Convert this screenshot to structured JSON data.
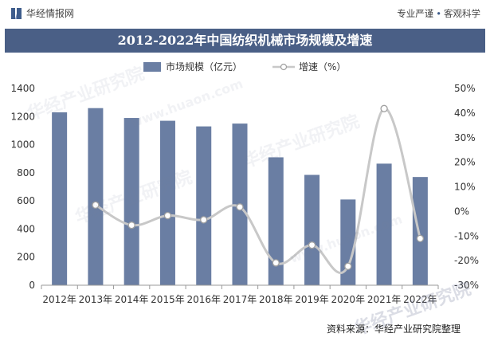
{
  "header": {
    "brand": "华经情报网",
    "slogan_left": "专业严谨",
    "slogan_right": "客观科学",
    "title": "2012-2022年中国纺织机械市场规模及增速"
  },
  "legend": {
    "bar_label": "市场规模（亿元）",
    "line_label": "增速（%）"
  },
  "watermarks": [
    "华经产业研究院",
    "www.huaon.com"
  ],
  "footer": {
    "source": "资料来源：华经产业研究院整理"
  },
  "chart_data": {
    "type": "bar+line",
    "title": "2012-2022年中国纺织机械市场规模及增速",
    "categories": [
      "2012年",
      "2013年",
      "2014年",
      "2015年",
      "2016年",
      "2017年",
      "2018年",
      "2019年",
      "2020年",
      "2021年",
      "2022年"
    ],
    "series": [
      {
        "name": "市场规模（亿元）",
        "type": "bar",
        "axis": "left",
        "values": [
          1230,
          1260,
          1190,
          1170,
          1130,
          1150,
          910,
          785,
          610,
          865,
          770
        ]
      },
      {
        "name": "增速（%）",
        "type": "line",
        "axis": "right",
        "values": [
          null,
          2.6,
          -5.6,
          -1.7,
          -3.4,
          1.8,
          -20.9,
          -13.7,
          -22.3,
          41.8,
          -11.0
        ]
      }
    ],
    "ylim_left": [
      0,
      1400
    ],
    "yticks_left": [
      "0",
      "200",
      "400",
      "600",
      "800",
      "1000",
      "1200",
      "1400"
    ],
    "yticks_left_values": [
      0,
      200,
      400,
      600,
      800,
      1000,
      1200,
      1400
    ],
    "ylim_right": [
      -30,
      50
    ],
    "yticks_right": [
      "-30%",
      "-20%",
      "-10%",
      "0%",
      "10%",
      "20%",
      "30%",
      "40%",
      "50%"
    ],
    "yticks_right_values": [
      -30,
      -20,
      -10,
      0,
      10,
      20,
      30,
      40,
      50
    ],
    "colors": {
      "bar": "#6a7ea3",
      "line": "#c8c8c8",
      "marker_fill": "#ffffff",
      "marker_stroke": "#a0a0a0"
    }
  }
}
